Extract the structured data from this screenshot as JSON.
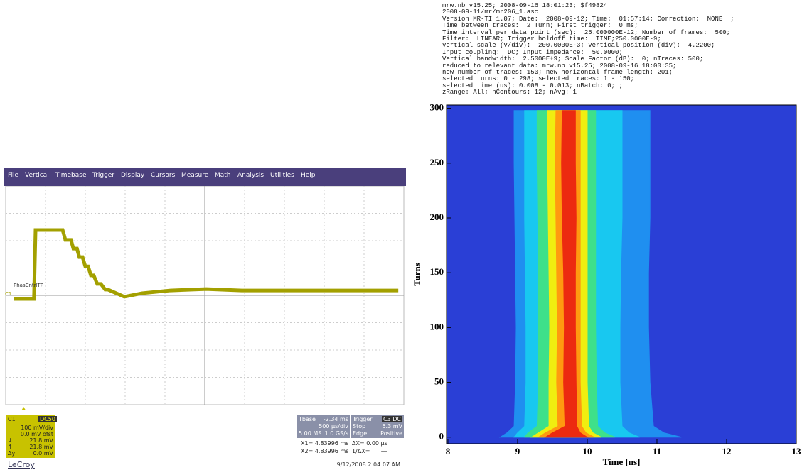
{
  "scope": {
    "menu": [
      "File",
      "Vertical",
      "Timebase",
      "Trigger",
      "Display",
      "Cursors",
      "Measure",
      "Math",
      "Analysis",
      "Utilities",
      "Help"
    ],
    "trace_label": "PhasCntrlTP",
    "marker": "C1",
    "trace": {
      "color": "#a3a000",
      "x": [
        0.21,
        0.71,
        0.75,
        1.43,
        1.5,
        1.64,
        1.7,
        1.79,
        1.85,
        1.93,
        2.0,
        2.07,
        2.14,
        2.21,
        2.3,
        2.39,
        2.5,
        2.57,
        2.98,
        3.43,
        4.14,
        5.04,
        5.93,
        7.0,
        9.86
      ],
      "y": [
        -0.13,
        -0.13,
        2.39,
        2.39,
        2.03,
        2.03,
        1.71,
        1.71,
        1.4,
        1.4,
        1.06,
        1.06,
        0.73,
        0.73,
        0.42,
        0.42,
        0.21,
        0.21,
        -0.05,
        0.08,
        0.18,
        0.23,
        0.18,
        0.18,
        0.18
      ]
    },
    "channel": {
      "name": "C1",
      "coupling": "DC50",
      "lines": [
        "100 mV/div",
        "0.0 mV ofst",
        "21.8 mV",
        "21.8 mV",
        "0.0 mV"
      ],
      "symbols": [
        "↓",
        "↑",
        "Δy"
      ]
    },
    "timebase": {
      "title": "Tbase",
      "offset": "-2.34 ms",
      "rows": [
        [
          "",
          "500 µs/div"
        ],
        [
          "5.00 MS",
          "1.0 GS/s"
        ]
      ]
    },
    "trigger": {
      "title": "Trigger",
      "source": "C3 DC",
      "rows": [
        [
          "Stop",
          "5.3 mV"
        ],
        [
          "Edge",
          "Positive"
        ]
      ]
    },
    "cursors": [
      [
        "X1= 4.83996 ms",
        "ΔX= 0.00 µs"
      ],
      [
        "X2= 4.83996 ms",
        "1/ΔX=      ---"
      ]
    ],
    "brand": "LeCroy",
    "timestamp": "9/12/2008 2:04:07 AM"
  },
  "chart_data": {
    "type": "contour",
    "notes": [
      "mrw.nb v15.25; 2008-09-16 18:01:23; $f49824",
      "2008-09-11/mr/mr206_1.asc",
      "Version MR-TI 1.07; Date:  2008-09-12; Time:  01:57:14; Correction:  NONE  ;",
      "Time between traces:  2 Turn; First trigger:  0 ms;",
      "Time interval per data point (sec):  25.000000E-12; Number of frames:  500;",
      "Filter:  LINEAR; Trigger holdoff time:  TIME;250.0000E-9;",
      "Vertical scale (V/div):  200.0000E-3; Vertical position (div):  4.2200;",
      "Input coupling:  DC; Input impedance:  50.0000;",
      "Vertical bandwidth:  2.5000E+9; Scale Factor (dB):  0; nTraces: 500;",
      "reduced to relevant data: mrw.nb v15.25; 2008-09-16 18:00:35;",
      "new number of traces: 150; new horizontal frame length: 201;",
      "selected turns: 0 - 298; selected traces: 1 - 150;",
      "selected time (us): 0.008 - 0.013; nBatch: 0; ;",
      "zRange: All; nContours: 12; nAvg: 1"
    ],
    "x_label": "Time [ns]",
    "y_label": "Turns",
    "xlim": [
      7.98,
      13.0
    ],
    "ylim": [
      -6,
      303
    ],
    "xticks": [
      8,
      9,
      10,
      11,
      12,
      13
    ],
    "yticks": [
      0,
      50,
      100,
      150,
      200,
      250,
      300
    ],
    "background": "#2a3fd6",
    "y": [
      0,
      4,
      10,
      50,
      100,
      150,
      200,
      250,
      298
    ],
    "series": [
      {
        "color": "#1f8ff0",
        "left": [
          8.75,
          8.85,
          8.95,
          8.97,
          8.98,
          8.97,
          8.96,
          8.95,
          8.95
        ],
        "right": [
          11.35,
          11.1,
          10.95,
          10.9,
          10.88,
          10.88,
          10.9,
          10.9,
          10.9
        ]
      },
      {
        "color": "#18c8f0",
        "left": [
          8.95,
          9.0,
          9.1,
          9.12,
          9.12,
          9.11,
          9.1,
          9.1,
          9.1
        ],
        "right": [
          10.75,
          10.6,
          10.5,
          10.47,
          10.47,
          10.48,
          10.5,
          10.5,
          10.5
        ]
      },
      {
        "color": "#3ee08a",
        "left": [
          9.1,
          9.15,
          9.28,
          9.3,
          9.3,
          9.3,
          9.29,
          9.28,
          9.28
        ],
        "right": [
          10.4,
          10.25,
          10.15,
          10.13,
          10.12,
          10.12,
          10.12,
          10.12,
          10.12
        ]
      },
      {
        "color": "#f0ee10",
        "left": [
          9.2,
          9.3,
          9.45,
          9.45,
          9.46,
          9.45,
          9.44,
          9.43,
          9.43
        ],
        "right": [
          10.2,
          10.08,
          10.02,
          10.0,
          10.0,
          10.0,
          10.0,
          10.0,
          10.0
        ]
      },
      {
        "color": "#ff9a10",
        "left": [
          9.3,
          9.4,
          9.58,
          9.56,
          9.57,
          9.56,
          9.55,
          9.54,
          9.55
        ],
        "right": [
          10.1,
          9.98,
          9.92,
          9.9,
          9.9,
          9.9,
          9.9,
          9.9,
          9.9
        ]
      },
      {
        "color": "#ec2a10",
        "left": [
          9.4,
          9.5,
          9.68,
          9.66,
          9.67,
          9.66,
          9.64,
          9.63,
          9.64
        ],
        "right": [
          10.0,
          9.9,
          9.85,
          9.84,
          9.83,
          9.83,
          9.84,
          9.83,
          9.83
        ]
      }
    ]
  }
}
